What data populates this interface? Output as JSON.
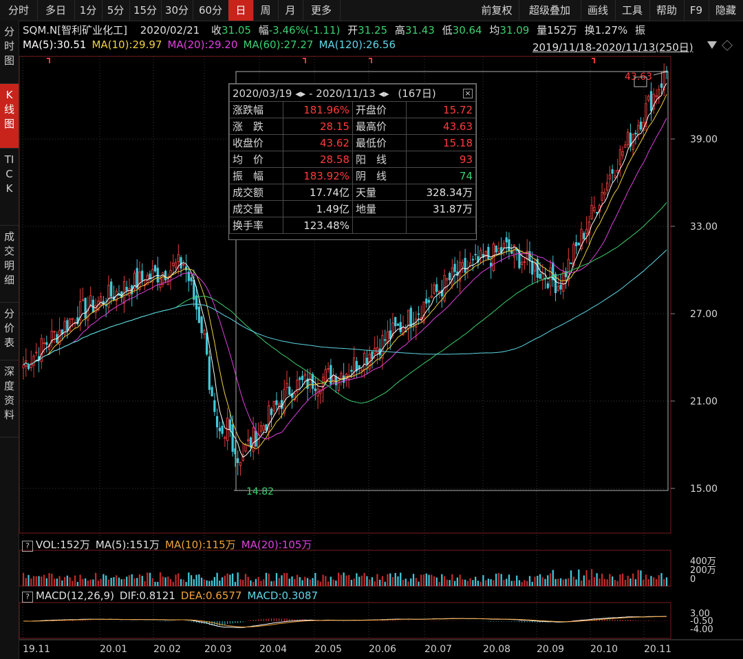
{
  "toolbar": {
    "left": [
      "分时",
      "多日",
      "1分",
      "5分",
      "15分",
      "30分",
      "60分",
      "日",
      "周",
      "月",
      "更多"
    ],
    "active": "日",
    "right": [
      "前复权",
      "超级叠加",
      "画线",
      "工具",
      "帮助",
      "F9",
      "隐藏"
    ]
  },
  "leftnav": [
    {
      "label": "分时图",
      "active": false
    },
    {
      "label": "K线图",
      "active": true
    },
    {
      "label": "TICK",
      "active": false
    },
    {
      "label": "成交明细",
      "active": false
    },
    {
      "label": "分价表",
      "active": false
    },
    {
      "label": "深度资料",
      "active": false
    }
  ],
  "quote": {
    "name": "SQM.N[智利矿业化工]",
    "date": "2020/02/21",
    "close_label": "收",
    "close": "31.05",
    "change_label": "幅",
    "change": "-3.46%(-1.11)",
    "open_label": "开",
    "open": "31.25",
    "high_label": "高",
    "high": "31.43",
    "low_label": "低",
    "low": "30.64",
    "avg_label": "均",
    "avg": "31.09",
    "vol_label": "量",
    "vol": "152万",
    "turnover_label": "换",
    "turnover": "1.27%",
    "amp_label": "振"
  },
  "ma_line": [
    {
      "text": "MA(5):30.51",
      "color": "#ffffff"
    },
    {
      "text": "MA(10):29.97",
      "color": "#f2d23c"
    },
    {
      "text": "MA(20):29.20",
      "color": "#e040e0"
    },
    {
      "text": "MA(60):27.27",
      "color": "#3bd16f"
    },
    {
      "text": "MA(120):26.56",
      "color": "#5fd8e8"
    }
  ],
  "range_label": "2019/11/18-2020/11/13(250日)",
  "stats": {
    "header_left": "2020/03/19",
    "header_sep": "-",
    "header_right": "2020/11/13",
    "header_days": "(167日)",
    "rows": [
      [
        "涨跌幅",
        "181.96%",
        "开盘价",
        "15.72"
      ],
      [
        "涨　跌",
        "28.15",
        "最高价",
        "43.63"
      ],
      [
        "收盘价",
        "43.62",
        "最低价",
        "15.18"
      ],
      [
        "均　价",
        "28.58",
        "阳　线",
        "93"
      ],
      [
        "振　幅",
        "183.92%",
        "阴　线",
        "74"
      ],
      [
        "成交额",
        "17.74亿",
        "天量",
        "328.34万"
      ],
      [
        "成交量",
        "1.49亿",
        "地量",
        "31.87万"
      ],
      [
        "换手率",
        "123.48%",
        "",
        ""
      ]
    ]
  },
  "vol_line": [
    {
      "text": "VOL:152万",
      "color": "#e0e0e0"
    },
    {
      "text": "MA(5):151万",
      "color": "#e0e0e0"
    },
    {
      "text": "MA(10):115万",
      "color": "#f2a33c"
    },
    {
      "text": "MA(20):105万",
      "color": "#e040e0"
    }
  ],
  "macd_line": [
    {
      "text": "MACD(12,26,9)",
      "color": "#e0e0e0"
    },
    {
      "text": "DIF:0.8121",
      "color": "#e0e0e0"
    },
    {
      "text": "DEA:0.6577",
      "color": "#f2a33c"
    },
    {
      "text": "MACD:0.3087",
      "color": "#5fd8e8"
    }
  ],
  "chart_data": [
    {
      "type": "candlestick",
      "title": "SQM.N 日K",
      "y_ticks": [
        15.0,
        21.0,
        27.0,
        33.0,
        39.0
      ],
      "ylim": [
        14.5,
        44.5
      ],
      "x_ticks": [
        "19.11",
        "20.01",
        "20.02",
        "20.03",
        "20.04",
        "20.05",
        "20.06",
        "20.07",
        "20.08",
        "20.09",
        "20.10",
        "20.11"
      ],
      "annotations": [
        {
          "text": "43.63",
          "kind": "high"
        },
        {
          "text": "14.82",
          "kind": "low"
        }
      ],
      "close_anchors": [
        {
          "month": "19.11",
          "close": 23.5
        },
        {
          "month": "19.12",
          "close": 27.0
        },
        {
          "month": "20.01",
          "close": 29.0
        },
        {
          "month": "20.02",
          "close": 30.5
        },
        {
          "month": "20.03",
          "close": 17.0
        },
        {
          "month": "20.04",
          "close": 22.0
        },
        {
          "month": "20.05",
          "close": 23.0
        },
        {
          "month": "20.06",
          "close": 26.0
        },
        {
          "month": "20.07",
          "close": 29.5
        },
        {
          "month": "20.08",
          "close": 31.5
        },
        {
          "month": "20.09",
          "close": 29.0
        },
        {
          "month": "20.10",
          "close": 37.0
        },
        {
          "month": "20.11",
          "close": 43.6
        }
      ],
      "series": [
        "MA5",
        "MA10",
        "MA20",
        "MA60",
        "MA120"
      ]
    },
    {
      "type": "bar",
      "title": "VOL",
      "y_ticks": [
        "400万",
        "200万",
        "0"
      ]
    },
    {
      "type": "bar",
      "title": "MACD",
      "y_ticks": [
        "3.00",
        "-0.50",
        "-4.00"
      ]
    }
  ]
}
